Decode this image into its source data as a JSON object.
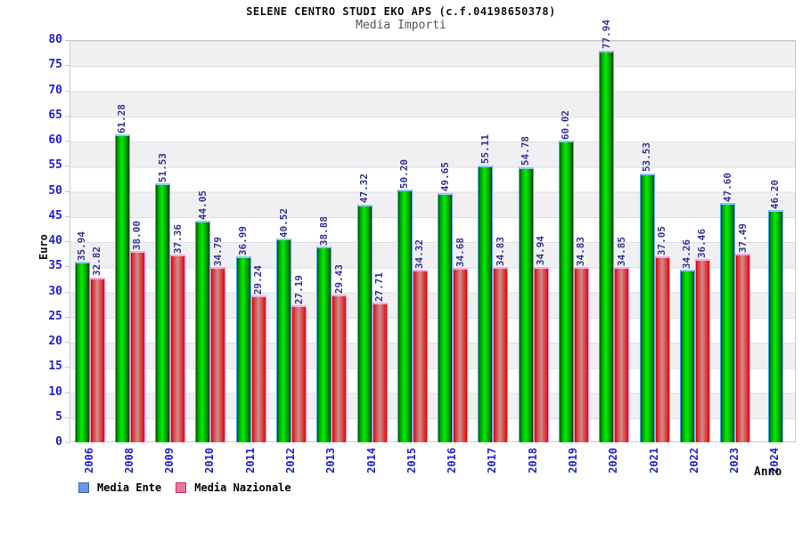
{
  "title": "SELENE CENTRO STUDI EKO APS (c.f.04198650378)",
  "subtitle": "Media Importi",
  "axes": {
    "y_label": "Euro",
    "x_label": "Anno",
    "y_ticks": [
      0,
      5,
      10,
      15,
      20,
      25,
      30,
      35,
      40,
      45,
      50,
      55,
      60,
      65,
      70,
      75,
      80
    ]
  },
  "colors": {
    "tick_label": "#2222cc",
    "value_label": "#333399",
    "band_gray": "#f0f0f2",
    "green_bar": "#00cc00",
    "green_border": "#58aaf0",
    "red_bar": "#e80000",
    "red_border": "#ff8fd0"
  },
  "legend": [
    {
      "label": "Media Ente",
      "fill": "#6699dd",
      "border": "#3a66aa"
    },
    {
      "label": "Media Nazionale",
      "fill": "#ee7799",
      "border": "#bb3366"
    }
  ],
  "chart_data": {
    "type": "bar",
    "title": "SELENE CENTRO STUDI EKO APS (c.f.04198650378)",
    "subtitle": "Media Importi",
    "xlabel": "Anno",
    "ylabel": "Euro",
    "ylim": [
      0,
      80
    ],
    "grid": "horizontal-bands",
    "legend_position": "bottom-left",
    "categories": [
      "2006",
      "2008",
      "2009",
      "2010",
      "2011",
      "2012",
      "2013",
      "2014",
      "2015",
      "2016",
      "2017",
      "2018",
      "2019",
      "2020",
      "2021",
      "2022",
      "2023",
      "2024"
    ],
    "series": [
      {
        "name": "Media Ente",
        "values": [
          35.94,
          61.28,
          51.53,
          44.05,
          36.99,
          40.52,
          38.88,
          47.32,
          50.2,
          49.65,
          55.11,
          54.78,
          60.02,
          77.94,
          53.53,
          34.26,
          47.6,
          46.2
        ]
      },
      {
        "name": "Media Nazionale",
        "values": [
          32.82,
          38.0,
          37.36,
          34.79,
          29.24,
          27.19,
          29.43,
          27.71,
          34.32,
          34.68,
          34.83,
          34.94,
          34.83,
          34.85,
          37.05,
          36.46,
          37.49,
          null
        ]
      }
    ]
  }
}
